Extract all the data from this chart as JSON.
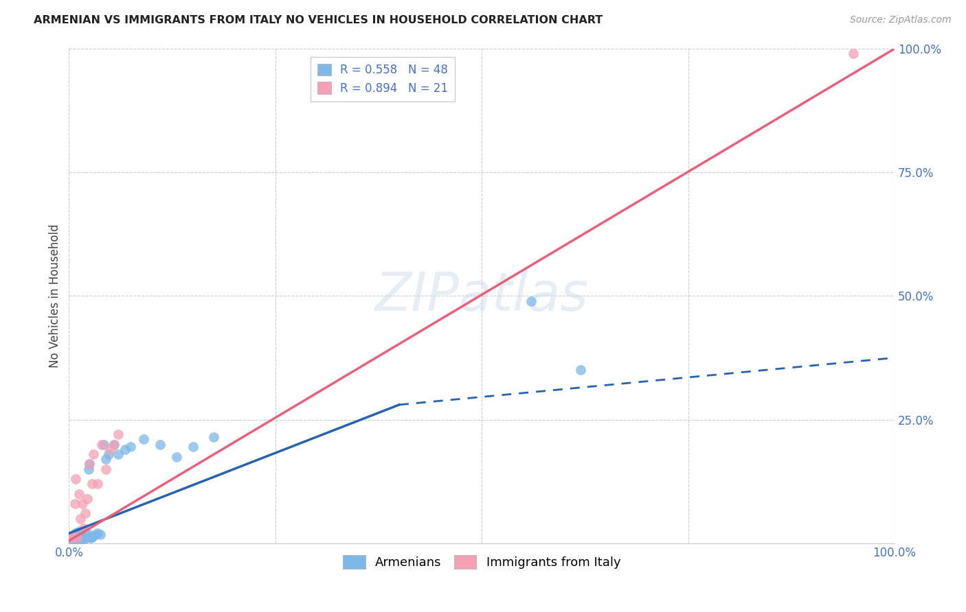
{
  "title": "ARMENIAN VS IMMIGRANTS FROM ITALY NO VEHICLES IN HOUSEHOLD CORRELATION CHART",
  "source": "Source: ZipAtlas.com",
  "ylabel": "No Vehicles in Household",
  "watermark": "ZIPatlas",
  "legend_armenians": "Armenians",
  "legend_italy": "Immigrants from Italy",
  "r_armenians": 0.558,
  "n_armenians": 48,
  "r_italy": 0.894,
  "n_italy": 21,
  "xlim": [
    0,
    1.0
  ],
  "ylim": [
    0,
    1.0
  ],
  "xticks": [
    0.0,
    0.25,
    0.5,
    0.75,
    1.0
  ],
  "yticks": [
    0.0,
    0.25,
    0.5,
    0.75,
    1.0
  ],
  "xtick_labels": [
    "0.0%",
    "",
    "",
    "",
    "100.0%"
  ],
  "ytick_labels": [
    "",
    "25.0%",
    "50.0%",
    "75.0%",
    "100.0%"
  ],
  "background_color": "#ffffff",
  "plot_bg_color": "#ffffff",
  "grid_color": "#cccccc",
  "color_armenians": "#7db8e8",
  "color_italy": "#f4a0b5",
  "line_color_armenians": "#2563b0",
  "line_color_italy": "#e8607a",
  "armenians_x": [
    0.003,
    0.004,
    0.005,
    0.005,
    0.006,
    0.007,
    0.007,
    0.008,
    0.008,
    0.009,
    0.01,
    0.01,
    0.011,
    0.012,
    0.013,
    0.013,
    0.014,
    0.015,
    0.015,
    0.016,
    0.017,
    0.018,
    0.019,
    0.02,
    0.021,
    0.022,
    0.024,
    0.025,
    0.026,
    0.028,
    0.03,
    0.032,
    0.035,
    0.038,
    0.042,
    0.045,
    0.048,
    0.055,
    0.06,
    0.068,
    0.075,
    0.09,
    0.11,
    0.13,
    0.15,
    0.175,
    0.56,
    0.62
  ],
  "armenians_y": [
    0.005,
    0.008,
    0.01,
    0.015,
    0.008,
    0.012,
    0.018,
    0.005,
    0.02,
    0.01,
    0.015,
    0.022,
    0.008,
    0.018,
    0.012,
    0.025,
    0.005,
    0.01,
    0.02,
    0.015,
    0.018,
    0.008,
    0.022,
    0.015,
    0.01,
    0.02,
    0.15,
    0.16,
    0.01,
    0.012,
    0.015,
    0.018,
    0.02,
    0.018,
    0.2,
    0.17,
    0.18,
    0.2,
    0.18,
    0.19,
    0.195,
    0.21,
    0.2,
    0.175,
    0.195,
    0.215,
    0.49,
    0.35
  ],
  "italy_x": [
    0.003,
    0.005,
    0.007,
    0.008,
    0.01,
    0.012,
    0.014,
    0.016,
    0.018,
    0.02,
    0.022,
    0.025,
    0.028,
    0.03,
    0.035,
    0.04,
    0.045,
    0.05,
    0.055,
    0.06,
    0.95
  ],
  "italy_y": [
    0.01,
    0.015,
    0.08,
    0.13,
    0.01,
    0.1,
    0.05,
    0.08,
    0.03,
    0.06,
    0.09,
    0.16,
    0.12,
    0.18,
    0.12,
    0.2,
    0.15,
    0.19,
    0.2,
    0.22,
    0.99
  ],
  "arm_line_x0": 0.0,
  "arm_line_y0": 0.02,
  "arm_line_x1": 0.4,
  "arm_line_y1": 0.28,
  "arm_line_dash_x1": 1.0,
  "arm_line_dash_y1": 0.375,
  "ita_line_x0": 0.0,
  "ita_line_y0": 0.005,
  "ita_line_x1": 1.0,
  "ita_line_y1": 1.0
}
